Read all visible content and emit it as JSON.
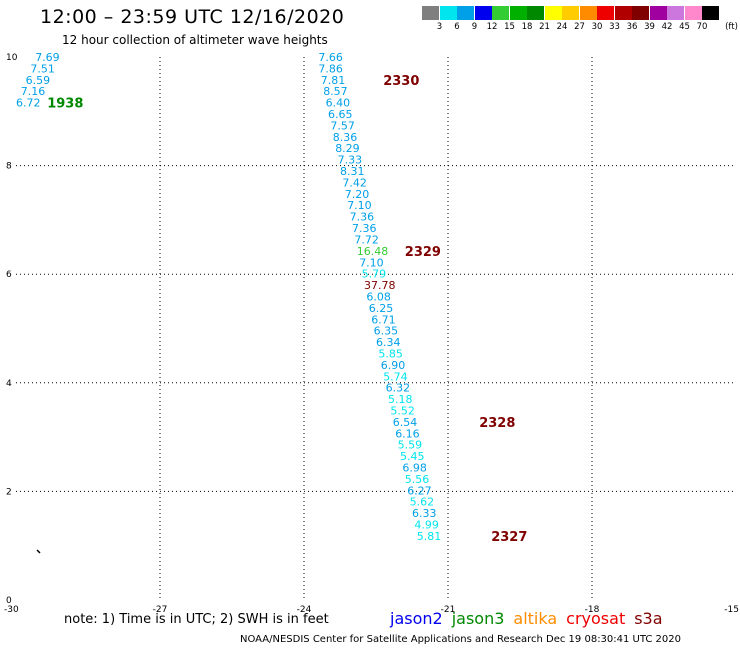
{
  "header": {
    "title": "12:00 – 23:59 UTC 12/16/2020",
    "subtitle": "12 hour collection of altimeter wave heights"
  },
  "colorbar": {
    "unit": "(ft)",
    "items": [
      {
        "label": "3",
        "color": "#7f7f7f"
      },
      {
        "label": "6",
        "color": "#00e5ee"
      },
      {
        "label": "9",
        "color": "#00a0e8"
      },
      {
        "label": "12",
        "color": "#0000ee"
      },
      {
        "label": "15",
        "color": "#33cc33"
      },
      {
        "label": "18",
        "color": "#00b000"
      },
      {
        "label": "21",
        "color": "#008800"
      },
      {
        "label": "24",
        "color": "#ffff00"
      },
      {
        "label": "27",
        "color": "#ffcc00"
      },
      {
        "label": "30",
        "color": "#ff8c00"
      },
      {
        "label": "33",
        "color": "#ee0000"
      },
      {
        "label": "36",
        "color": "#b00000"
      },
      {
        "label": "39",
        "color": "#800000"
      },
      {
        "label": "42",
        "color": "#a000a0"
      },
      {
        "label": "45",
        "color": "#cc77dd"
      },
      {
        "label": "70",
        "color": "#ff88cc"
      },
      {
        "label": "",
        "color": "#000000"
      }
    ]
  },
  "chart_data": {
    "type": "scatter",
    "xlim": [
      -30,
      -15
    ],
    "ylim": [
      0,
      10
    ],
    "xticks": [
      "-30",
      "-27",
      "-24",
      "-21",
      "-18",
      "-15"
    ],
    "yticks": [
      "0",
      "2",
      "4",
      "6",
      "8",
      "10"
    ],
    "grid": true,
    "points": [
      {
        "x": -29.6,
        "y": 10.0,
        "label": "7.69",
        "color": "#00a0e8"
      },
      {
        "x": -29.7,
        "y": 9.79,
        "label": "7.51",
        "color": "#00a0e8"
      },
      {
        "x": -29.8,
        "y": 9.58,
        "label": "6.59",
        "color": "#00a0e8"
      },
      {
        "x": -29.9,
        "y": 9.37,
        "label": "7.16",
        "color": "#00a0e8"
      },
      {
        "x": -30.0,
        "y": 9.16,
        "label": "6.72",
        "color": "#00a0e8"
      },
      {
        "x": -23.7,
        "y": 10.0,
        "label": "7.66",
        "color": "#00a0e8"
      },
      {
        "x": -23.7,
        "y": 9.79,
        "label": "7.86",
        "color": "#00a0e8"
      },
      {
        "x": -23.65,
        "y": 9.58,
        "label": "7.81",
        "color": "#00a0e8"
      },
      {
        "x": -23.6,
        "y": 9.37,
        "label": "8.57",
        "color": "#00a0e8"
      },
      {
        "x": -23.55,
        "y": 9.16,
        "label": "6.40",
        "color": "#00a0e8"
      },
      {
        "x": -23.5,
        "y": 8.95,
        "label": "6.65",
        "color": "#00a0e8"
      },
      {
        "x": -23.45,
        "y": 8.74,
        "label": "7.57",
        "color": "#00a0e8"
      },
      {
        "x": -23.4,
        "y": 8.53,
        "label": "8.36",
        "color": "#00a0e8"
      },
      {
        "x": -23.35,
        "y": 8.32,
        "label": "8.29",
        "color": "#00a0e8"
      },
      {
        "x": -23.3,
        "y": 8.11,
        "label": "7.33",
        "color": "#00a0e8"
      },
      {
        "x": -23.25,
        "y": 7.9,
        "label": "8.31",
        "color": "#00a0e8"
      },
      {
        "x": -23.2,
        "y": 7.69,
        "label": "7.42",
        "color": "#00a0e8"
      },
      {
        "x": -23.15,
        "y": 7.48,
        "label": "7.20",
        "color": "#00a0e8"
      },
      {
        "x": -23.1,
        "y": 7.27,
        "label": "7.10",
        "color": "#00a0e8"
      },
      {
        "x": -23.05,
        "y": 7.06,
        "label": "7.36",
        "color": "#00a0e8"
      },
      {
        "x": -23.0,
        "y": 6.85,
        "label": "7.36",
        "color": "#00a0e8"
      },
      {
        "x": -22.95,
        "y": 6.64,
        "label": "7.72",
        "color": "#00a0e8"
      },
      {
        "x": -22.9,
        "y": 6.43,
        "label": "16.48",
        "color": "#33cc33"
      },
      {
        "x": -22.85,
        "y": 6.22,
        "label": "7.10",
        "color": "#00a0e8"
      },
      {
        "x": -22.8,
        "y": 6.01,
        "label": "5.79",
        "color": "#00e5ee"
      },
      {
        "x": -22.75,
        "y": 5.8,
        "label": "37.78",
        "color": "#800000"
      },
      {
        "x": -22.7,
        "y": 5.59,
        "label": "6.08",
        "color": "#00a0e8"
      },
      {
        "x": -22.65,
        "y": 5.38,
        "label": "6.25",
        "color": "#00a0e8"
      },
      {
        "x": -22.6,
        "y": 5.17,
        "label": "6.71",
        "color": "#00a0e8"
      },
      {
        "x": -22.55,
        "y": 4.96,
        "label": "6.35",
        "color": "#00a0e8"
      },
      {
        "x": -22.5,
        "y": 4.75,
        "label": "6.34",
        "color": "#00a0e8"
      },
      {
        "x": -22.45,
        "y": 4.54,
        "label": "5.85",
        "color": "#00e5ee"
      },
      {
        "x": -22.4,
        "y": 4.33,
        "label": "6.90",
        "color": "#00a0e8"
      },
      {
        "x": -22.35,
        "y": 4.12,
        "label": "5.74",
        "color": "#00e5ee"
      },
      {
        "x": -22.3,
        "y": 3.91,
        "label": "6.32",
        "color": "#00a0e8"
      },
      {
        "x": -22.25,
        "y": 3.7,
        "label": "5.18",
        "color": "#00e5ee"
      },
      {
        "x": -22.2,
        "y": 3.49,
        "label": "5.52",
        "color": "#00e5ee"
      },
      {
        "x": -22.15,
        "y": 3.28,
        "label": "6.54",
        "color": "#00a0e8"
      },
      {
        "x": -22.1,
        "y": 3.07,
        "label": "6.16",
        "color": "#00a0e8"
      },
      {
        "x": -22.05,
        "y": 2.86,
        "label": "5.59",
        "color": "#00e5ee"
      },
      {
        "x": -22.0,
        "y": 2.65,
        "label": "5.45",
        "color": "#00e5ee"
      },
      {
        "x": -21.95,
        "y": 2.44,
        "label": "6.98",
        "color": "#00a0e8"
      },
      {
        "x": -21.9,
        "y": 2.23,
        "label": "5.56",
        "color": "#00e5ee"
      },
      {
        "x": -21.85,
        "y": 2.02,
        "label": "6.27",
        "color": "#00a0e8"
      },
      {
        "x": -21.8,
        "y": 1.81,
        "label": "5.62",
        "color": "#00e5ee"
      },
      {
        "x": -21.75,
        "y": 1.6,
        "label": "6.33",
        "color": "#00a0e8"
      },
      {
        "x": -21.7,
        "y": 1.39,
        "label": "4.99",
        "color": "#00e5ee"
      },
      {
        "x": -21.65,
        "y": 1.18,
        "label": "5.81",
        "color": "#00e5ee"
      }
    ],
    "time_labels": [
      {
        "x": -29.35,
        "y": 9.16,
        "label": "1938",
        "color": "#008800"
      },
      {
        "x": -22.35,
        "y": 9.58,
        "label": "2330",
        "color": "#800000"
      },
      {
        "x": -21.9,
        "y": 6.43,
        "label": "2329",
        "color": "#800000"
      },
      {
        "x": -20.35,
        "y": 3.28,
        "label": "2328",
        "color": "#800000"
      },
      {
        "x": -20.1,
        "y": 1.18,
        "label": "2327",
        "color": "#800000"
      }
    ]
  },
  "footer": {
    "note": "note: 1) Time is in UTC; 2) SWH is in feet",
    "satellites": [
      {
        "name": "jason2",
        "color": "#0000ee"
      },
      {
        "name": "jason3",
        "color": "#008800"
      },
      {
        "name": "altika",
        "color": "#ff8c00"
      },
      {
        "name": "cryosat",
        "color": "#ee0000"
      },
      {
        "name": "s3a",
        "color": "#800000"
      }
    ],
    "credit": "NOAA/NESDIS Center for Satellite Applications and Research    Dec 19 08:30:41 UTC 2020"
  }
}
